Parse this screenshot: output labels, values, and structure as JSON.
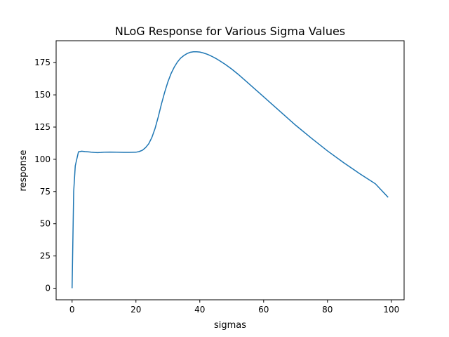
{
  "chart_data": {
    "type": "line",
    "title": "NLoG Response for Various Sigma Values",
    "xlabel": "sigmas",
    "ylabel": "response",
    "xlim": [
      -5,
      104
    ],
    "ylim": [
      -9,
      192
    ],
    "xticks": [
      0,
      20,
      40,
      60,
      80,
      100
    ],
    "yticks": [
      0,
      25,
      50,
      75,
      100,
      125,
      150,
      175
    ],
    "grid": false,
    "legend": "none",
    "colors": {
      "line": "#1f77b4",
      "axes": "#000000",
      "background": "#ffffff"
    },
    "series": [
      {
        "x": [
          0,
          0.5,
          1,
          2,
          3,
          4,
          5,
          6,
          7,
          8,
          9,
          10,
          12,
          14,
          16,
          18,
          20,
          21,
          22,
          23,
          24,
          25,
          26,
          27,
          28,
          29,
          30,
          31,
          32,
          33,
          34,
          35,
          36,
          37,
          38,
          39,
          40,
          41,
          42,
          43,
          44,
          45,
          46,
          48,
          50,
          52,
          55,
          60,
          65,
          70,
          75,
          80,
          85,
          90,
          95,
          99
        ],
        "y": [
          0,
          75,
          95,
          105.8,
          106.3,
          106,
          105.8,
          105.5,
          105.3,
          105.2,
          105.3,
          105.5,
          105.6,
          105.5,
          105.4,
          105.4,
          105.5,
          106,
          107,
          109,
          112,
          117,
          124,
          133,
          143,
          152,
          160,
          166.5,
          171.5,
          175.5,
          178.5,
          180.5,
          182,
          183,
          183.4,
          183.4,
          183.2,
          182.6,
          181.8,
          180.8,
          179.6,
          178.3,
          176.8,
          173.6,
          170,
          166,
          159.5,
          148.5,
          137.5,
          126.5,
          116.3,
          106.5,
          97.5,
          89,
          81,
          70.5
        ]
      }
    ]
  }
}
